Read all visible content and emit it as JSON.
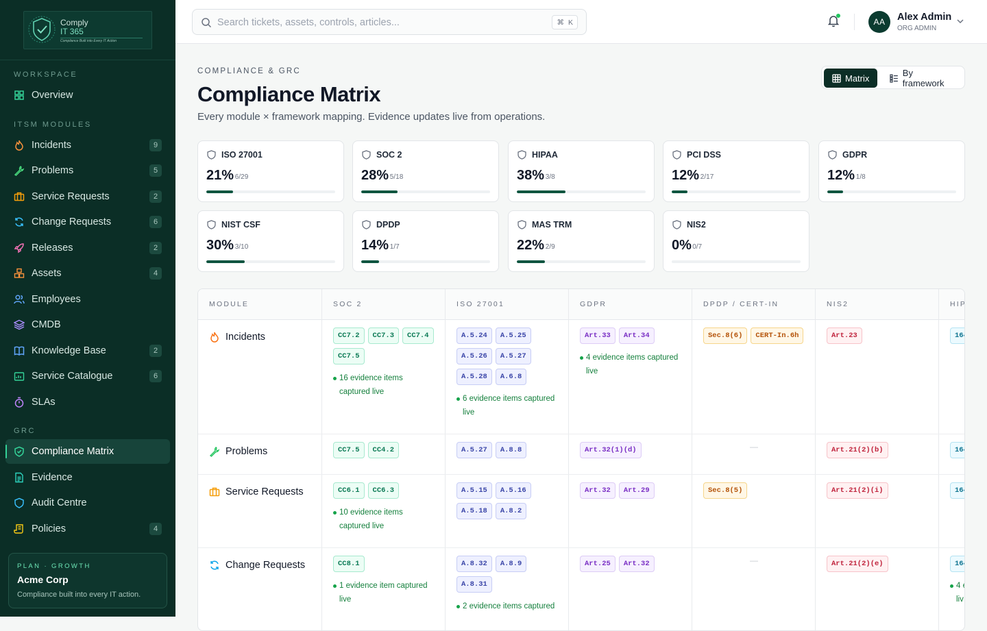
{
  "brand": {
    "line1": "Comply",
    "line2": "IT 365",
    "tagline": "Compliance Built into Every IT Action"
  },
  "sidebar": {
    "sections": {
      "workspace": "WORKSPACE",
      "itsm": "ITSM MODULES",
      "grc": "GRC"
    },
    "items": [
      {
        "label": "Overview",
        "icon": "grid-icon"
      },
      {
        "label": "Incidents",
        "count": "9",
        "icon": "flame-icon"
      },
      {
        "label": "Problems",
        "count": "5",
        "icon": "wrench-icon"
      },
      {
        "label": "Service Requests",
        "count": "2",
        "icon": "briefcase-icon"
      },
      {
        "label": "Change Requests",
        "count": "6",
        "icon": "refresh-icon"
      },
      {
        "label": "Releases",
        "count": "2",
        "icon": "rocket-icon"
      },
      {
        "label": "Assets",
        "count": "4",
        "icon": "boxes-icon"
      },
      {
        "label": "Employees",
        "icon": "users-icon"
      },
      {
        "label": "CMDB",
        "icon": "layers-icon"
      },
      {
        "label": "Knowledge Base",
        "count": "2",
        "icon": "book-icon"
      },
      {
        "label": "Service Catalogue",
        "count": "6",
        "icon": "store-icon"
      },
      {
        "label": "SLAs",
        "icon": "timer-icon"
      },
      {
        "label": "Compliance Matrix",
        "icon": "shield-check-icon"
      },
      {
        "label": "Evidence",
        "icon": "file-icon"
      },
      {
        "label": "Audit Centre",
        "icon": "shield-icon"
      },
      {
        "label": "Policies",
        "count": "4",
        "icon": "scroll-icon"
      }
    ],
    "plan": {
      "label": "PLAN · GROWTH",
      "org": "Acme Corp",
      "note": "Compliance built into every IT action."
    }
  },
  "topbar": {
    "search_placeholder": "Search tickets, assets, controls, articles...",
    "shortcut": [
      "⌘",
      "K"
    ],
    "user": {
      "initials": "AA",
      "name": "Alex Admin",
      "role": "ORG ADMIN"
    }
  },
  "page": {
    "eyebrow": "COMPLIANCE & GRC",
    "title": "Compliance Matrix",
    "subtitle": "Every module × framework mapping. Evidence updates live from operations.",
    "views": {
      "matrix": "Matrix",
      "by_framework": "By framework"
    }
  },
  "frameworks": [
    {
      "name": "ISO 27001",
      "pct": "21%",
      "frac": "6/29",
      "progress": 0.21
    },
    {
      "name": "SOC 2",
      "pct": "28%",
      "frac": "5/18",
      "progress": 0.28
    },
    {
      "name": "HIPAA",
      "pct": "38%",
      "frac": "3/8",
      "progress": 0.38
    },
    {
      "name": "PCI DSS",
      "pct": "12%",
      "frac": "2/17",
      "progress": 0.12
    },
    {
      "name": "GDPR",
      "pct": "12%",
      "frac": "1/8",
      "progress": 0.12
    },
    {
      "name": "NIST CSF",
      "pct": "30%",
      "frac": "3/10",
      "progress": 0.3
    },
    {
      "name": "DPDP",
      "pct": "14%",
      "frac": "1/7",
      "progress": 0.14
    },
    {
      "name": "MAS TRM",
      "pct": "22%",
      "frac": "2/9",
      "progress": 0.22
    },
    {
      "name": "NIS2",
      "pct": "0%",
      "frac": "0/7",
      "progress": 0.0
    }
  ],
  "matrix": {
    "columns": [
      "MODULE",
      "SOC 2",
      "ISO 27001",
      "GDPR",
      "DPDP / CERT-IN",
      "NIS2",
      "HIP"
    ],
    "rows": [
      {
        "module": "Incidents",
        "soc": [
          "CC7.2",
          "CC7.3",
          "CC7.4",
          "CC7.5"
        ],
        "soc_ev": [
          "16 evidence items",
          "captured live"
        ],
        "iso": [
          "A.5.24",
          "A.5.25",
          "A.5.26",
          "A.5.27",
          "A.5.28",
          "A.6.8"
        ],
        "iso_ev": [
          "6 evidence items captured",
          "live"
        ],
        "gdpr": [
          "Art.33",
          "Art.34"
        ],
        "gdpr_ev": [
          "4 evidence items captured",
          "live"
        ],
        "dpdp": [
          "Sec.8(6)",
          "CERT-In.6h"
        ],
        "nis": [
          "Art.23"
        ],
        "hip": [
          "164"
        ]
      },
      {
        "module": "Problems",
        "soc": [
          "CC7.5",
          "CC4.2"
        ],
        "iso": [
          "A.5.27",
          "A.8.8"
        ],
        "gdpr": [
          "Art.32(1)(d)"
        ],
        "dpdp_empty": "—",
        "nis": [
          "Art.21(2)(b)"
        ],
        "hip": [
          "164"
        ]
      },
      {
        "module": "Service Requests",
        "soc": [
          "CC6.1",
          "CC6.3"
        ],
        "soc_ev": [
          "10 evidence items",
          "captured live"
        ],
        "iso": [
          "A.5.15",
          "A.5.16",
          "A.5.18",
          "A.8.2"
        ],
        "gdpr": [
          "Art.32",
          "Art.29"
        ],
        "dpdp": [
          "Sec.8(5)"
        ],
        "nis": [
          "Art.21(2)(i)"
        ],
        "hip": [
          "164"
        ]
      },
      {
        "module": "Change Requests",
        "soc": [
          "CC8.1"
        ],
        "soc_ev": [
          "1 evidence item captured",
          "live"
        ],
        "iso": [
          "A.8.32",
          "A.8.9",
          "A.8.31"
        ],
        "iso_ev": [
          "2 evidence items captured"
        ],
        "gdpr": [
          "Art.25",
          "Art.32"
        ],
        "dpdp_empty": "—",
        "nis": [
          "Art.21(2)(e)"
        ],
        "hip": [
          "164"
        ],
        "hip_ev": [
          "4 e",
          "liv"
        ]
      }
    ]
  }
}
